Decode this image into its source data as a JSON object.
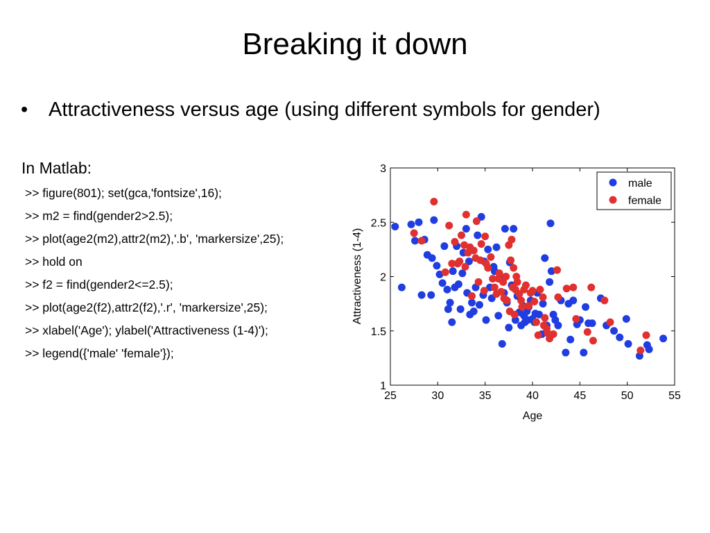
{
  "slide": {
    "title": "Breaking it down",
    "bullet_symbol": "•",
    "bullet": "Attractiveness versus age (using different symbols for gender)",
    "intro": "In Matlab:",
    "code_lines": [
      ">> figure(801); set(gca,'fontsize',16);",
      ">> m2 = find(gender2>2.5);",
      ">> plot(age2(m2),attr2(m2),'.b', 'markersize',25);",
      ">> hold on",
      ">> f2 = find(gender2<=2.5);",
      ">> plot(age2(f2),attr2(f2),'.r', 'markersize',25);",
      ">> xlabel('Age'); ylabel('Attractiveness (1-4)');",
      ">> legend({'male' 'female'});"
    ]
  },
  "colors": {
    "male": "#1f3de0",
    "female": "#e03030"
  },
  "chart_data": {
    "type": "scatter",
    "title": "",
    "xlabel": "Age",
    "ylabel": "Attractiveness (1-4)",
    "xlim": [
      25,
      55
    ],
    "ylim": [
      1,
      3
    ],
    "xticks": [
      "25",
      "30",
      "35",
      "40",
      "45",
      "50",
      "55"
    ],
    "yticks": [
      "1",
      "1.5",
      "2",
      "2.5",
      "3"
    ],
    "grid": false,
    "legend_position": "top-right",
    "series": [
      {
        "name": "male",
        "color": "#1f3de0",
        "points": [
          [
            25.5,
            2.46
          ],
          [
            26.2,
            1.9
          ],
          [
            27.2,
            2.48
          ],
          [
            27.6,
            2.33
          ],
          [
            28.0,
            2.5
          ],
          [
            28.3,
            1.83
          ],
          [
            28.6,
            2.34
          ],
          [
            28.9,
            2.2
          ],
          [
            29.3,
            1.83
          ],
          [
            29.4,
            2.17
          ],
          [
            29.6,
            2.52
          ],
          [
            29.9,
            2.1
          ],
          [
            30.2,
            2.02
          ],
          [
            30.5,
            1.94
          ],
          [
            30.7,
            2.28
          ],
          [
            31.0,
            1.88
          ],
          [
            31.1,
            1.7
          ],
          [
            31.3,
            1.76
          ],
          [
            31.5,
            1.58
          ],
          [
            31.6,
            2.05
          ],
          [
            31.8,
            1.9
          ],
          [
            32.0,
            2.28
          ],
          [
            32.2,
            1.93
          ],
          [
            32.4,
            1.7
          ],
          [
            32.6,
            2.03
          ],
          [
            32.7,
            2.22
          ],
          [
            33.0,
            2.44
          ],
          [
            33.1,
            1.85
          ],
          [
            33.3,
            2.14
          ],
          [
            33.4,
            1.65
          ],
          [
            33.6,
            1.76
          ],
          [
            33.8,
            1.68
          ],
          [
            34.0,
            1.9
          ],
          [
            34.2,
            2.38
          ],
          [
            34.4,
            1.74
          ],
          [
            34.6,
            2.55
          ],
          [
            34.8,
            1.83
          ],
          [
            34.9,
            2.14
          ],
          [
            35.1,
            1.6
          ],
          [
            35.3,
            2.25
          ],
          [
            35.5,
            1.9
          ],
          [
            35.7,
            1.8
          ],
          [
            35.9,
            2.09
          ],
          [
            36.0,
            2.05
          ],
          [
            36.2,
            2.27
          ],
          [
            36.4,
            1.64
          ],
          [
            36.6,
            2.0
          ],
          [
            36.8,
            1.38
          ],
          [
            37.0,
            1.85
          ],
          [
            37.1,
            2.44
          ],
          [
            37.3,
            1.76
          ],
          [
            37.5,
            1.53
          ],
          [
            37.6,
            2.13
          ],
          [
            37.8,
            1.92
          ],
          [
            38.0,
            2.44
          ],
          [
            38.2,
            1.6
          ],
          [
            38.4,
            1.82
          ],
          [
            38.6,
            1.67
          ],
          [
            38.8,
            1.55
          ],
          [
            39.0,
            1.73
          ],
          [
            39.1,
            1.64
          ],
          [
            39.2,
            1.58
          ],
          [
            39.4,
            1.68
          ],
          [
            39.5,
            1.6
          ],
          [
            39.6,
            1.72
          ],
          [
            39.8,
            1.78
          ],
          [
            40.0,
            1.61
          ],
          [
            40.2,
            1.58
          ],
          [
            40.3,
            1.66
          ],
          [
            40.5,
            1.85
          ],
          [
            40.7,
            1.65
          ],
          [
            41.0,
            1.47
          ],
          [
            41.1,
            1.75
          ],
          [
            41.3,
            2.17
          ],
          [
            41.5,
            1.55
          ],
          [
            41.8,
            1.95
          ],
          [
            41.9,
            2.49
          ],
          [
            42.0,
            2.05
          ],
          [
            42.2,
            1.65
          ],
          [
            42.4,
            1.6
          ],
          [
            42.7,
            1.55
          ],
          [
            43.0,
            1.78
          ],
          [
            43.5,
            1.3
          ],
          [
            43.8,
            1.75
          ],
          [
            44.0,
            1.42
          ],
          [
            44.3,
            1.78
          ],
          [
            44.7,
            1.56
          ],
          [
            45.0,
            1.6
          ],
          [
            45.4,
            1.3
          ],
          [
            45.6,
            1.72
          ],
          [
            45.9,
            1.57
          ],
          [
            46.3,
            1.57
          ],
          [
            47.2,
            1.8
          ],
          [
            47.8,
            1.55
          ],
          [
            48.6,
            1.5
          ],
          [
            49.2,
            1.44
          ],
          [
            49.9,
            1.61
          ],
          [
            50.1,
            1.38
          ],
          [
            51.3,
            1.27
          ],
          [
            52.1,
            1.37
          ],
          [
            52.3,
            1.33
          ],
          [
            53.8,
            1.43
          ]
        ]
      },
      {
        "name": "female",
        "color": "#e03030",
        "points": [
          [
            27.5,
            2.4
          ],
          [
            28.3,
            2.33
          ],
          [
            29.6,
            2.69
          ],
          [
            30.8,
            2.04
          ],
          [
            31.2,
            2.47
          ],
          [
            31.5,
            2.12
          ],
          [
            31.8,
            2.32
          ],
          [
            32.1,
            2.12
          ],
          [
            32.3,
            2.14
          ],
          [
            32.5,
            2.38
          ],
          [
            32.8,
            2.29
          ],
          [
            32.9,
            2.09
          ],
          [
            33.0,
            2.57
          ],
          [
            33.2,
            2.22
          ],
          [
            33.4,
            2.27
          ],
          [
            33.6,
            1.82
          ],
          [
            33.8,
            2.24
          ],
          [
            34.0,
            2.17
          ],
          [
            34.1,
            2.51
          ],
          [
            34.3,
            1.95
          ],
          [
            34.5,
            2.15
          ],
          [
            34.6,
            2.3
          ],
          [
            34.9,
            1.87
          ],
          [
            35.0,
            2.37
          ],
          [
            35.1,
            2.12
          ],
          [
            35.3,
            2.08
          ],
          [
            35.6,
            2.18
          ],
          [
            35.8,
            1.98
          ],
          [
            36.0,
            1.9
          ],
          [
            36.2,
            1.84
          ],
          [
            36.4,
            1.98
          ],
          [
            36.5,
            2.03
          ],
          [
            36.7,
            1.86
          ],
          [
            36.9,
            1.95
          ],
          [
            37.0,
            1.8
          ],
          [
            37.2,
            2.0
          ],
          [
            37.3,
            1.78
          ],
          [
            37.5,
            2.29
          ],
          [
            37.6,
            1.68
          ],
          [
            37.7,
            2.15
          ],
          [
            37.8,
            2.34
          ],
          [
            37.9,
            1.9
          ],
          [
            38.0,
            2.08
          ],
          [
            38.1,
            1.65
          ],
          [
            38.2,
            1.88
          ],
          [
            38.3,
            2.0
          ],
          [
            38.4,
            1.95
          ],
          [
            38.6,
            1.84
          ],
          [
            38.8,
            1.78
          ],
          [
            38.9,
            1.72
          ],
          [
            39.1,
            1.88
          ],
          [
            39.3,
            1.92
          ],
          [
            39.6,
            1.73
          ],
          [
            39.8,
            1.85
          ],
          [
            40.0,
            1.87
          ],
          [
            40.2,
            1.77
          ],
          [
            40.4,
            1.58
          ],
          [
            40.6,
            1.46
          ],
          [
            40.8,
            1.88
          ],
          [
            41.1,
            1.81
          ],
          [
            41.2,
            1.55
          ],
          [
            41.3,
            1.62
          ],
          [
            41.5,
            1.52
          ],
          [
            41.6,
            1.48
          ],
          [
            41.8,
            1.43
          ],
          [
            42.2,
            1.47
          ],
          [
            42.6,
            2.06
          ],
          [
            42.7,
            1.81
          ],
          [
            43.6,
            1.89
          ],
          [
            44.3,
            1.9
          ],
          [
            44.6,
            1.61
          ],
          [
            45.8,
            1.49
          ],
          [
            46.2,
            1.9
          ],
          [
            46.4,
            1.41
          ],
          [
            47.6,
            1.78
          ],
          [
            48.2,
            1.58
          ],
          [
            51.4,
            1.32
          ],
          [
            52.0,
            1.46
          ]
        ]
      }
    ]
  }
}
